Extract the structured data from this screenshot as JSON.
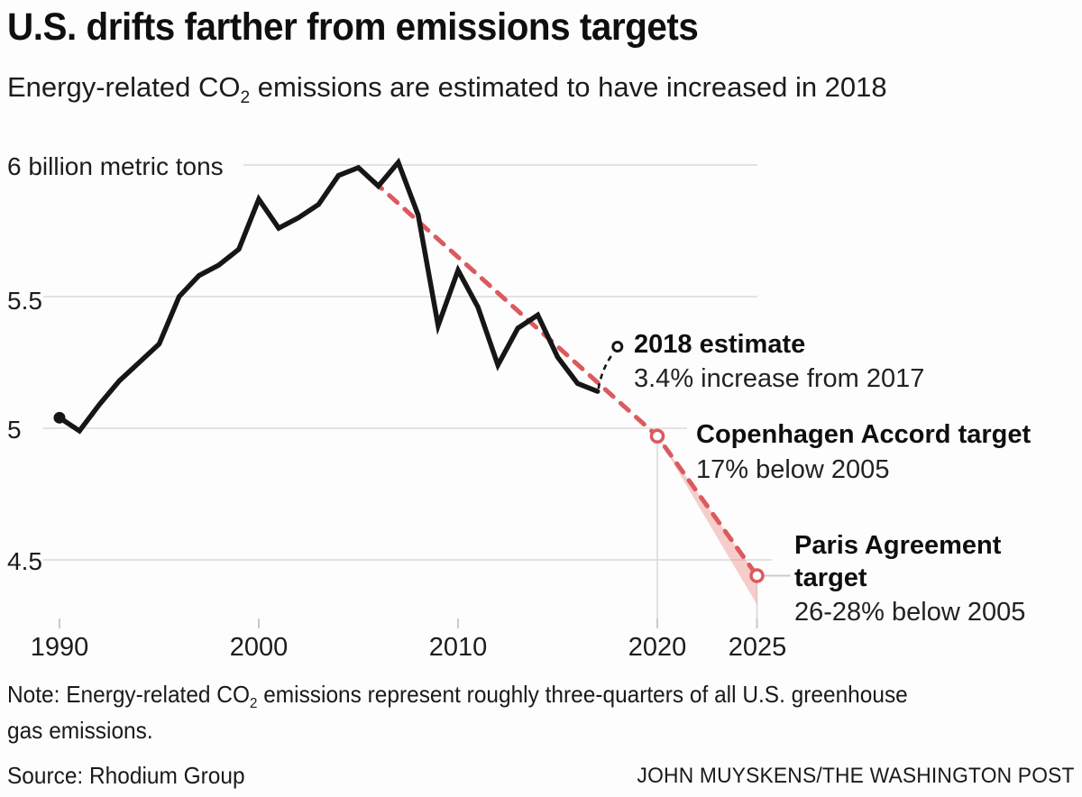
{
  "header": {
    "title": "U.S. drifts farther from emissions targets",
    "subtitle_pre": "Energy-related CO",
    "subtitle_sub": "2",
    "subtitle_post": " emissions are estimated to have increased in 2018"
  },
  "chart_data": {
    "type": "line",
    "title": "U.S. drifts farther from emissions targets",
    "unit": "billion metric tons",
    "x": [
      1990,
      1991,
      1992,
      1993,
      1994,
      1995,
      1996,
      1997,
      1998,
      1999,
      2000,
      2001,
      2002,
      2003,
      2004,
      2005,
      2006,
      2007,
      2008,
      2009,
      2010,
      2011,
      2012,
      2013,
      2014,
      2015,
      2016,
      2017
    ],
    "series": [
      {
        "name": "U.S. energy-related CO2 emissions",
        "values": [
          5.04,
          4.99,
          5.09,
          5.18,
          5.25,
          5.32,
          5.5,
          5.58,
          5.62,
          5.68,
          5.87,
          5.76,
          5.8,
          5.85,
          5.96,
          5.99,
          5.92,
          6.01,
          5.81,
          5.39,
          5.6,
          5.46,
          5.24,
          5.38,
          5.43,
          5.27,
          5.17,
          5.14
        ]
      }
    ],
    "estimate_2018": {
      "year": 2018,
      "value": 5.31,
      "label": "2018 estimate",
      "sublabel": "3.4% increase from 2017"
    },
    "trajectory_start": {
      "year": 2005,
      "value": 5.99
    },
    "targets": [
      {
        "name": "Copenhagen Accord target",
        "year": 2020,
        "value": 4.97,
        "sublabel": "17% below 2005"
      },
      {
        "name": "Paris Agreement target",
        "name_line1": "Paris Agreement",
        "name_line2": "target",
        "year": 2025,
        "value": 4.44,
        "band_bottom": 4.33,
        "sublabel": "26-28% below 2005"
      }
    ],
    "y_ticks": [
      {
        "value": 6,
        "label": "6 billion metric tons"
      },
      {
        "value": 5.5,
        "label": "5.5"
      },
      {
        "value": 5,
        "label": "5"
      },
      {
        "value": 4.5,
        "label": "4.5"
      }
    ],
    "x_ticks": [
      {
        "year": 1990,
        "label": "1990"
      },
      {
        "year": 2000,
        "label": "2000"
      },
      {
        "year": 2010,
        "label": "2010"
      },
      {
        "year": 2020,
        "label": "2020"
      },
      {
        "year": 2025,
        "label": "2025"
      }
    ],
    "xlim": [
      1990,
      2025
    ],
    "ylim": [
      4.2,
      6.05
    ],
    "grid": true,
    "colors": {
      "line": "#161616",
      "target_red": "#db5a5e",
      "band_pink": "rgba(233,116,110,0.35)",
      "grid_gray": "#dadada",
      "tick_gray": "#c9c9c9",
      "connector_gray": "#cccccc"
    }
  },
  "footer": {
    "note_pre": "Note: Energy-related CO",
    "note_sub": "2",
    "note_post": " emissions represent roughly three-quarters of all U.S. greenhouse",
    "note_line2": "gas emissions.",
    "source": "Source: Rhodium Group",
    "byline": "JOHN MUYSKENS/THE WASHINGTON POST"
  }
}
